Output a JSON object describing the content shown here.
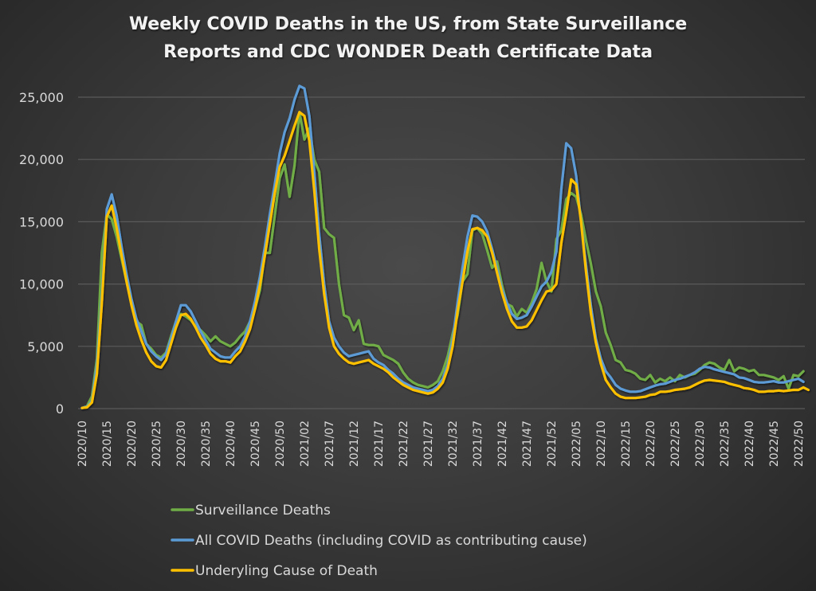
{
  "chart_data": {
    "type": "line",
    "title": [
      "Weekly COVID Deaths in the US, from State Surveillance",
      "Reports and CDC WONDER Death Certificate Data"
    ],
    "xlabel": "",
    "ylabel": "",
    "ylim": [
      0,
      25000
    ],
    "yticks": [
      0,
      5000,
      10000,
      15000,
      20000,
      25000
    ],
    "ytick_labels": [
      "0",
      "5,000",
      "10,000",
      "15,000",
      "20,000",
      "25,000"
    ],
    "grid": true,
    "legend_position": "bottom",
    "x": [
      "2020/10",
      "2020/11",
      "2020/12",
      "2020/13",
      "2020/14",
      "2020/15",
      "2020/16",
      "2020/17",
      "2020/18",
      "2020/19",
      "2020/20",
      "2020/21",
      "2020/22",
      "2020/23",
      "2020/24",
      "2020/25",
      "2020/26",
      "2020/27",
      "2020/28",
      "2020/29",
      "2020/30",
      "2020/31",
      "2020/32",
      "2020/33",
      "2020/34",
      "2020/35",
      "2020/36",
      "2020/37",
      "2020/38",
      "2020/39",
      "2020/40",
      "2020/41",
      "2020/42",
      "2020/43",
      "2020/44",
      "2020/45",
      "2020/46",
      "2020/47",
      "2020/48",
      "2020/49",
      "2020/50",
      "2020/51",
      "2020/52",
      "2020/53",
      "2021/01",
      "2021/02",
      "2021/03",
      "2021/04",
      "2021/05",
      "2021/06",
      "2021/07",
      "2021/08",
      "2021/09",
      "2021/10",
      "2021/11",
      "2021/12",
      "2021/13",
      "2021/14",
      "2021/15",
      "2021/16",
      "2021/17",
      "2021/18",
      "2021/19",
      "2021/20",
      "2021/21",
      "2021/22",
      "2021/23",
      "2021/24",
      "2021/25",
      "2021/26",
      "2021/27",
      "2021/28",
      "2021/29",
      "2021/30",
      "2021/31",
      "2021/32",
      "2021/33",
      "2021/34",
      "2021/35",
      "2021/36",
      "2021/37",
      "2021/38",
      "2021/39",
      "2021/40",
      "2021/41",
      "2021/42",
      "2021/43",
      "2021/44",
      "2021/45",
      "2021/46",
      "2021/47",
      "2021/48",
      "2021/49",
      "2021/50",
      "2021/51",
      "2021/52",
      "2022/01",
      "2022/02",
      "2022/03",
      "2022/04",
      "2022/05",
      "2022/06",
      "2022/07",
      "2022/08",
      "2022/09",
      "2022/10",
      "2022/11",
      "2022/12",
      "2022/13",
      "2022/14",
      "2022/15",
      "2022/16",
      "2022/17",
      "2022/18",
      "2022/19",
      "2022/20",
      "2022/21",
      "2022/22",
      "2022/23",
      "2022/24",
      "2022/25",
      "2022/26",
      "2022/27",
      "2022/28",
      "2022/29",
      "2022/30",
      "2022/31",
      "2022/32",
      "2022/33",
      "2022/34",
      "2022/35",
      "2022/36",
      "2022/37",
      "2022/38",
      "2022/39",
      "2022/40",
      "2022/41",
      "2022/42",
      "2022/43",
      "2022/44",
      "2022/45",
      "2022/46",
      "2022/47",
      "2022/48",
      "2022/49",
      "2022/50"
    ],
    "xtick_labels": [
      "2020/10",
      "2020/15",
      "2020/20",
      "2020/25",
      "2020/30",
      "2020/35",
      "2020/40",
      "2020/45",
      "2020/50",
      "2021/02",
      "2021/07",
      "2021/12",
      "2021/17",
      "2021/22",
      "2021/27",
      "2021/32",
      "2021/37",
      "2021/42",
      "2021/47",
      "2021/52",
      "2022/05",
      "2022/10",
      "2022/15",
      "2022/20",
      "2022/25",
      "2022/30",
      "2022/35",
      "2022/40",
      "2022/45",
      "2022/50"
    ],
    "series": [
      {
        "name": "Surveillance Deaths",
        "color": "#70ad47",
        "values": [
          50,
          200,
          1000,
          4000,
          12500,
          15600,
          15200,
          13800,
          12000,
          10200,
          8500,
          7000,
          6700,
          5200,
          4800,
          4300,
          4100,
          4500,
          5800,
          7000,
          7600,
          7400,
          7100,
          6600,
          6300,
          5900,
          5400,
          5800,
          5400,
          5200,
          5000,
          5300,
          5800,
          6200,
          7000,
          8000,
          9500,
          12500,
          12500,
          15500,
          18500,
          19600,
          17000,
          19500,
          23800,
          21600,
          22500,
          20000,
          19000,
          14500,
          14000,
          13700,
          10000,
          7500,
          7300,
          6300,
          7100,
          5200,
          5100,
          5100,
          5000,
          4300,
          4100,
          3900,
          3600,
          2900,
          2400,
          2100,
          1900,
          1800,
          1700,
          1900,
          2200,
          3000,
          4200,
          6000,
          7500,
          10200,
          10800,
          14300,
          14500,
          14000,
          12700,
          11300,
          11800,
          9900,
          8400,
          8200,
          7400,
          8000,
          7700,
          8500,
          9600,
          11700,
          10200,
          9400,
          13600,
          14300,
          16800,
          17300,
          17000,
          15600,
          13500,
          11600,
          9400,
          8200,
          6100,
          5100,
          3900,
          3700,
          3100,
          3000,
          2800,
          2400,
          2300,
          2700,
          2100,
          2400,
          2200,
          2500,
          2200,
          2700,
          2500,
          2700,
          2800,
          3100,
          3500,
          3700,
          3600,
          3300,
          3100,
          3900,
          3000,
          3300,
          3200,
          3000,
          3100,
          2700,
          2700,
          2600,
          2500,
          2300,
          2600,
          1600,
          2700,
          2600,
          3000
        ]
      },
      {
        "name": "All COVID Deaths (including COVID as contributing cause)",
        "color": "#5b9bd5",
        "values": [
          50,
          150,
          600,
          3500,
          9000,
          16000,
          17200,
          15500,
          13000,
          10800,
          8800,
          7200,
          6200,
          5200,
          4600,
          4200,
          3900,
          4400,
          5600,
          7000,
          8300,
          8300,
          7800,
          7000,
          6200,
          5500,
          4800,
          4500,
          4200,
          4100,
          4100,
          4600,
          5000,
          5800,
          7000,
          8600,
          10600,
          13000,
          15600,
          18000,
          20500,
          22200,
          23300,
          24800,
          25900,
          25700,
          23500,
          19000,
          14000,
          10000,
          7000,
          5700,
          5000,
          4500,
          4200,
          4300,
          4400,
          4500,
          4600,
          4000,
          3700,
          3500,
          3100,
          2800,
          2400,
          2100,
          1900,
          1700,
          1600,
          1500,
          1400,
          1500,
          1800,
          2400,
          3500,
          5500,
          8500,
          11300,
          13800,
          15500,
          15400,
          15000,
          14200,
          12800,
          11200,
          9600,
          8500,
          7600,
          7200,
          7300,
          7500,
          8200,
          9000,
          9800,
          10200,
          11000,
          12600,
          17600,
          21300,
          20900,
          18700,
          15000,
          11500,
          8200,
          5600,
          4000,
          3000,
          2500,
          1900,
          1600,
          1450,
          1350,
          1350,
          1400,
          1550,
          1700,
          1850,
          1950,
          2000,
          2150,
          2300,
          2400,
          2550,
          2700,
          2900,
          3200,
          3350,
          3300,
          3150,
          3050,
          2950,
          2850,
          2750,
          2500,
          2450,
          2300,
          2150,
          2100,
          2100,
          2150,
          2200,
          2100,
          2100,
          2200,
          2300,
          2400,
          2150
        ]
      },
      {
        "name": "Underyling Cause of Death",
        "color": "#ffc000",
        "values": [
          50,
          100,
          500,
          2800,
          8500,
          15400,
          16300,
          14500,
          12300,
          10200,
          8300,
          6700,
          5500,
          4500,
          3800,
          3400,
          3300,
          3900,
          5200,
          6500,
          7500,
          7600,
          7200,
          6500,
          5700,
          5100,
          4400,
          4000,
          3800,
          3800,
          3700,
          4200,
          4600,
          5400,
          6400,
          8000,
          9900,
          12300,
          14800,
          17300,
          19400,
          20300,
          21500,
          22700,
          23800,
          23500,
          21500,
          17500,
          12800,
          9200,
          6500,
          5000,
          4400,
          4000,
          3700,
          3600,
          3700,
          3800,
          3900,
          3600,
          3400,
          3200,
          2900,
          2500,
          2200,
          1900,
          1700,
          1500,
          1400,
          1300,
          1200,
          1300,
          1600,
          2100,
          3200,
          5000,
          7800,
          10200,
          12600,
          14400,
          14500,
          14300,
          13800,
          12500,
          10900,
          9300,
          8000,
          7000,
          6500,
          6500,
          6600,
          7100,
          7900,
          8700,
          9400,
          9500,
          10000,
          13300,
          15700,
          18400,
          18000,
          15000,
          11000,
          7600,
          5300,
          3600,
          2300,
          1700,
          1200,
          950,
          850,
          850,
          850,
          900,
          950,
          1100,
          1150,
          1350,
          1350,
          1400,
          1500,
          1550,
          1600,
          1700,
          1900,
          2100,
          2250,
          2300,
          2250,
          2200,
          2150,
          2000,
          1900,
          1800,
          1650,
          1600,
          1500,
          1350,
          1350,
          1400,
          1400,
          1450,
          1400,
          1450,
          1500,
          1500,
          1700,
          1500
        ]
      }
    ]
  }
}
